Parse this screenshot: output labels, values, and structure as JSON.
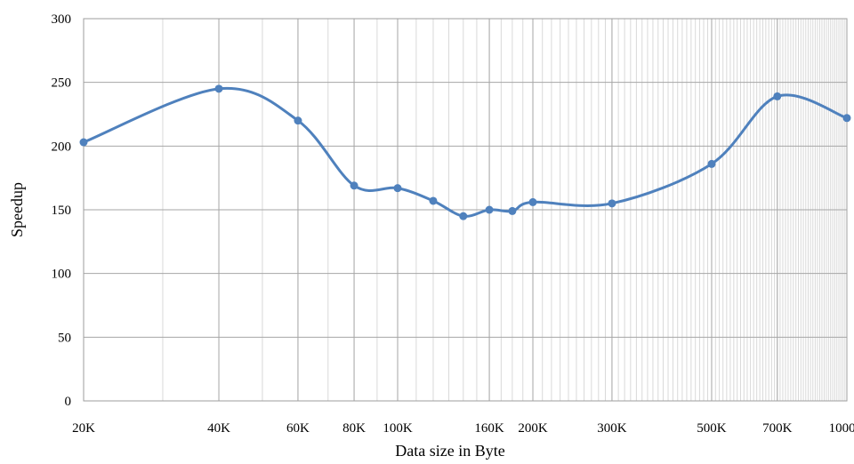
{
  "chart_data": {
    "type": "line",
    "title": "",
    "xlabel": "Data size in Byte",
    "ylabel": "Speedup",
    "x_scale": "log",
    "xlim": [
      20000,
      1000000
    ],
    "ylim": [
      0,
      300
    ],
    "grid": true,
    "x_ticks": [
      {
        "value": 20000,
        "label": "20K"
      },
      {
        "value": 40000,
        "label": "40K"
      },
      {
        "value": 60000,
        "label": "60K"
      },
      {
        "value": 80000,
        "label": "80K"
      },
      {
        "value": 100000,
        "label": "100K"
      },
      {
        "value": 160000,
        "label": "160K"
      },
      {
        "value": 200000,
        "label": "200K"
      },
      {
        "value": 300000,
        "label": "300K"
      },
      {
        "value": 500000,
        "label": "500K"
      },
      {
        "value": 700000,
        "label": "700K"
      },
      {
        "value": 1000000,
        "label": "1000K"
      }
    ],
    "y_ticks": [
      0,
      50,
      100,
      150,
      200,
      250,
      300
    ],
    "series": [
      {
        "color": "#4f81bd",
        "points": [
          {
            "x": 20000,
            "y": 203
          },
          {
            "x": 40000,
            "y": 245
          },
          {
            "x": 60000,
            "y": 220
          },
          {
            "x": 80000,
            "y": 169
          },
          {
            "x": 100000,
            "y": 167
          },
          {
            "x": 120000,
            "y": 157
          },
          {
            "x": 140000,
            "y": 145
          },
          {
            "x": 160000,
            "y": 150
          },
          {
            "x": 180000,
            "y": 149
          },
          {
            "x": 200000,
            "y": 156
          },
          {
            "x": 300000,
            "y": 155
          },
          {
            "x": 500000,
            "y": 186
          },
          {
            "x": 700000,
            "y": 239
          },
          {
            "x": 1000000,
            "y": 222
          }
        ]
      }
    ]
  }
}
